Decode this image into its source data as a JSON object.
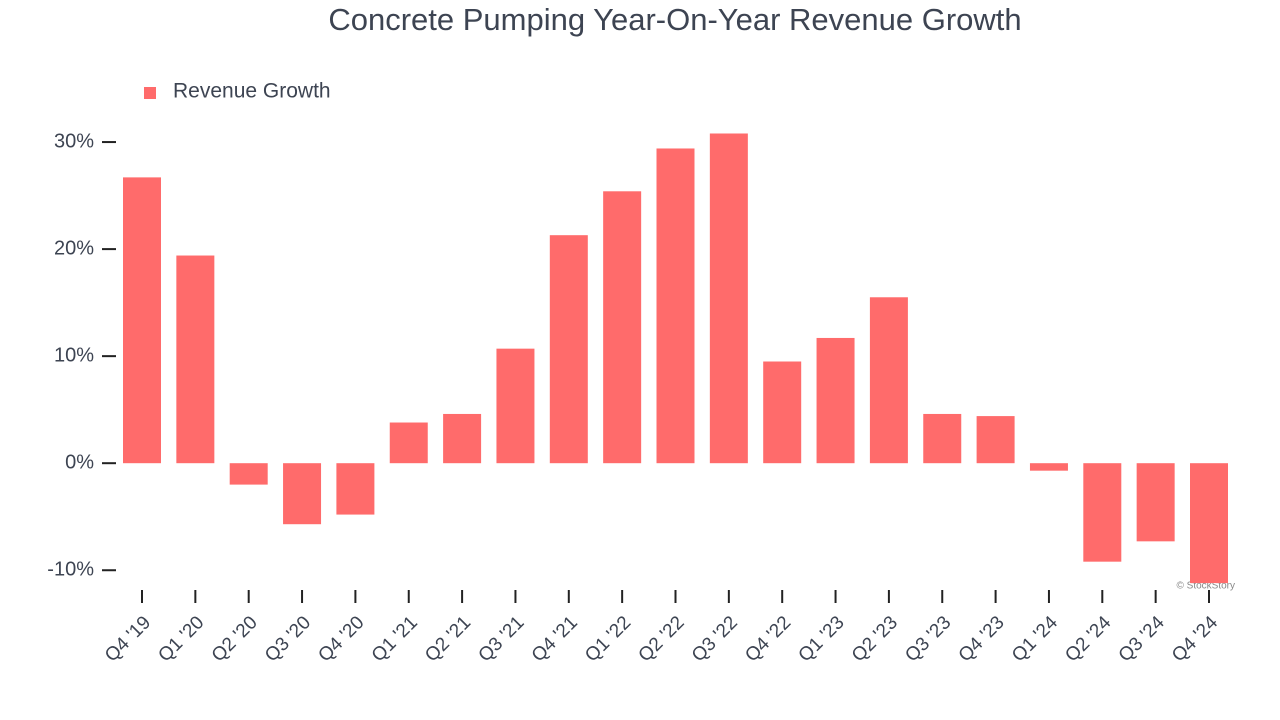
{
  "chart_data": {
    "type": "bar",
    "title": "Concrete Pumping Year-On-Year Revenue Growth",
    "watermark": "© StockStory",
    "categories": [
      "Q4 '19",
      "Q1 '20",
      "Q2 '20",
      "Q3 '20",
      "Q4 '20",
      "Q1 '21",
      "Q2 '21",
      "Q3 '21",
      "Q4 '21",
      "Q1 '22",
      "Q2 '22",
      "Q3 '22",
      "Q4 '22",
      "Q1 '23",
      "Q2 '23",
      "Q3 '23",
      "Q4 '23",
      "Q1 '24",
      "Q2 '24",
      "Q3 '24",
      "Q4 '24"
    ],
    "series": [
      {
        "name": "Revenue Growth",
        "color": "#ff6b6b",
        "values": [
          26.7,
          19.4,
          -2.0,
          -5.7,
          -4.8,
          3.8,
          4.6,
          10.7,
          21.3,
          25.4,
          29.4,
          30.8,
          9.5,
          11.7,
          15.5,
          4.6,
          4.4,
          -0.7,
          -9.2,
          -7.3,
          -11.2
        ]
      }
    ],
    "ylim": [
      -12.5,
      31.5
    ],
    "yticks": [
      {
        "value": -10,
        "label": "-10%"
      },
      {
        "value": 0,
        "label": "0%"
      },
      {
        "value": 10,
        "label": "10%"
      },
      {
        "value": 20,
        "label": "20%"
      },
      {
        "value": 30,
        "label": "30%"
      }
    ],
    "legend": "top-left",
    "grid": false
  }
}
